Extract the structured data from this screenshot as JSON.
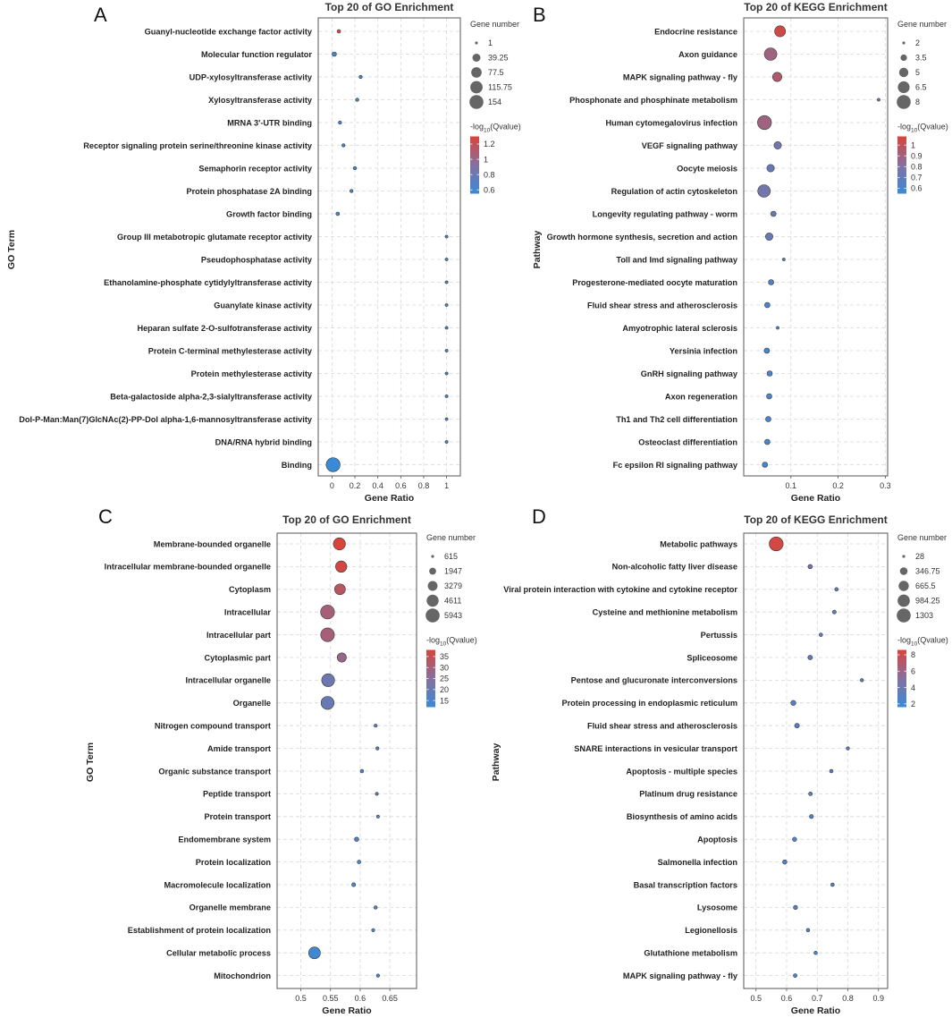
{
  "chart_data": [
    {
      "panel": "A",
      "type": "scatter",
      "title": "Top 20 of GO Enrichment",
      "xlabel": "Gene Ratio",
      "ylabel": "GO Term",
      "xlim": [
        -0.12,
        1.12
      ],
      "xticks": [
        0,
        0.2,
        0.4,
        0.6,
        0.8,
        1
      ],
      "xtick_labels": [
        "0",
        "0.2",
        "0.4",
        "0.6",
        "0.8",
        "1"
      ],
      "categories": [
        "Guanyl-nucleotide exchange factor activity",
        "Molecular function regulator",
        "UDP-xylosyltransferase activity",
        "Xylosyltransferase activity",
        "MRNA 3'-UTR binding",
        "Receptor signaling protein serine/threonine kinase activity",
        "Semaphorin receptor activity",
        "Protein phosphatase 2A binding",
        "Growth factor binding",
        "Group III metabotropic glutamate receptor activity",
        "Pseudophosphatase activity",
        "Ethanolamine-phosphate cytidylyltransferase activity",
        "Guanylate kinase activity",
        "Heparan sulfate 2-O-sulfotransferase activity",
        "Protein C-terminal methylesterase activity",
        "Protein methylesterase activity",
        "Beta-galactoside alpha-2,3-sialyltransferase activity",
        "Dol-P-Man:Man(7)GlcNAc(2)-PP-Dol alpha-1,6-mannosyltransferase activity",
        "DNA/RNA hybrid binding",
        "Binding"
      ],
      "x": [
        0.06,
        0.02,
        0.25,
        0.22,
        0.07,
        0.1,
        0.2,
        0.17,
        0.05,
        1,
        1,
        1,
        1,
        1,
        1,
        1,
        1,
        1,
        1,
        0.01
      ],
      "gene_number": [
        3,
        7,
        2,
        2,
        2,
        2,
        2,
        2,
        3,
        1,
        1,
        1,
        1,
        1,
        1,
        1,
        1,
        1,
        1,
        154
      ],
      "qvalue_log": [
        1.25,
        0.6,
        0.6,
        0.6,
        0.6,
        0.6,
        0.6,
        0.62,
        0.6,
        0.6,
        0.6,
        0.6,
        0.6,
        0.6,
        0.6,
        0.6,
        0.6,
        0.6,
        0.6,
        0.55
      ],
      "size_legend": {
        "title": "Gene number",
        "values": [
          1,
          39.25,
          77.5,
          115.75,
          154
        ],
        "labels": [
          "1",
          "39.25",
          "77.5",
          "115.75",
          "154"
        ]
      },
      "color_legend": {
        "title_prefix": "-log",
        "title_sub": "10",
        "title_suffix": "(Qvalue)",
        "range": [
          0.55,
          1.3
        ],
        "ticks": [
          1.2,
          1,
          0.8,
          0.6
        ],
        "tick_labels": [
          "1.2",
          "1",
          "0.8",
          "0.6"
        ]
      }
    },
    {
      "panel": "B",
      "type": "scatter",
      "title": "Top 20 of KEGG Enrichment",
      "xlabel": "Gene Ratio",
      "ylabel": "Pathway",
      "xlim": [
        0,
        0.305
      ],
      "xticks": [
        0.1,
        0.2,
        0.3
      ],
      "xtick_labels": [
        "0.1",
        "0.2",
        "0.3"
      ],
      "categories": [
        "Endocrine resistance",
        "Axon guidance",
        "MAPK signaling pathway - fly",
        "Phosphonate and phosphinate metabolism",
        "Human cytomegalovirus infection",
        "VEGF signaling pathway",
        "Oocyte meiosis",
        "Regulation of actin cytoskeleton",
        "Longevity regulating pathway - worm",
        "Growth hormone synthesis, secretion and action",
        "Toll and Imd signaling pathway",
        "Progesterone-mediated oocyte maturation",
        "Fluid shear stress and atherosclerosis",
        "Amyotrophic lateral sclerosis",
        "Yersinia infection",
        "GnRH signaling pathway",
        "Axon regeneration",
        "Th1 and Th2 cell differentiation",
        "Osteoclast differentiation",
        "Fc epsilon RI signaling pathway"
      ],
      "x": [
        0.077,
        0.057,
        0.071,
        0.286,
        0.044,
        0.072,
        0.057,
        0.043,
        0.063,
        0.054,
        0.085,
        0.058,
        0.05,
        0.072,
        0.049,
        0.055,
        0.054,
        0.052,
        0.05,
        0.045
      ],
      "gene_number": [
        6,
        7,
        5,
        2,
        8,
        4,
        4,
        7,
        3,
        4,
        2,
        3,
        3,
        2,
        3,
        3,
        3,
        3,
        3,
        3
      ],
      "qvalue_log": [
        1.05,
        0.9,
        0.95,
        0.8,
        0.9,
        0.75,
        0.7,
        0.75,
        0.7,
        0.72,
        0.72,
        0.62,
        0.6,
        0.62,
        0.6,
        0.6,
        0.6,
        0.6,
        0.6,
        0.58
      ],
      "size_legend": {
        "title": "Gene number",
        "values": [
          2,
          3.5,
          5,
          6.5,
          8
        ],
        "labels": [
          "2",
          "3.5",
          "5",
          "6.5",
          "8"
        ]
      },
      "color_legend": {
        "title_prefix": "-log",
        "title_sub": "10",
        "title_suffix": "(Qvalue)",
        "range": [
          0.55,
          1.08
        ],
        "ticks": [
          1,
          0.9,
          0.8,
          0.7,
          0.6
        ],
        "tick_labels": [
          "1",
          "0.9",
          "0.8",
          "0.7",
          "0.6"
        ]
      }
    },
    {
      "panel": "C",
      "type": "scatter",
      "title": "Top 20 of GO Enrichment",
      "xlabel": "Gene Ratio",
      "ylabel": "GO Term",
      "xlim": [
        0.46,
        0.695
      ],
      "xticks": [
        0.5,
        0.55,
        0.6,
        0.65
      ],
      "xtick_labels": [
        "0.5",
        "0.55",
        "0.6",
        "0.65"
      ],
      "categories": [
        "Membrane-bounded organelle",
        "Intracellular membrane-bounded organelle",
        "Cytoplasm",
        "Intracellular",
        "Intracellular part",
        "Cytoplasmic part",
        "Intracellular organelle",
        "Organelle",
        "Nitrogen compound transport",
        "Amide transport",
        "Organic substance transport",
        "Peptide transport",
        "Protein transport",
        "Endomembrane system",
        "Protein localization",
        "Macromolecule localization",
        "Organelle membrane",
        "Establishment of protein localization",
        "Cellular metabolic process",
        "Mitochondrion"
      ],
      "x": [
        0.565,
        0.568,
        0.566,
        0.545,
        0.545,
        0.569,
        0.546,
        0.545,
        0.626,
        0.629,
        0.603,
        0.628,
        0.63,
        0.594,
        0.598,
        0.589,
        0.626,
        0.622,
        0.523,
        0.63
      ],
      "gene_number": [
        4700,
        4200,
        3900,
        5943,
        5800,
        3000,
        5200,
        5300,
        700,
        700,
        750,
        650,
        650,
        1000,
        800,
        900,
        750,
        700,
        4500,
        700
      ],
      "qvalue_log": [
        38,
        37,
        33,
        30,
        30,
        28,
        21,
        20,
        17,
        18,
        15,
        16,
        16,
        16,
        15,
        15,
        15,
        15,
        13,
        14
      ],
      "size_legend": {
        "title": "Gene number",
        "values": [
          615,
          1947,
          3279,
          4611,
          5943
        ],
        "labels": [
          "615",
          "1947",
          "3279",
          "4611",
          "5943"
        ]
      },
      "color_legend": {
        "title_prefix": "-log",
        "title_sub": "10",
        "title_suffix": "(Qvalue)",
        "range": [
          12,
          38
        ],
        "ticks": [
          35,
          30,
          25,
          20,
          15
        ],
        "tick_labels": [
          "35",
          "30",
          "25",
          "20",
          "15"
        ]
      }
    },
    {
      "panel": "D",
      "type": "scatter",
      "title": "Top 20 of KEGG Enrichment",
      "xlabel": "Gene Ratio",
      "ylabel": "Pathway",
      "xlim": [
        0.46,
        0.93
      ],
      "xticks": [
        0.5,
        0.6,
        0.7,
        0.8,
        0.9
      ],
      "xtick_labels": [
        "0.5",
        "0.6",
        "0.7",
        "0.8",
        "0.9"
      ],
      "categories": [
        "Metabolic pathways",
        "Non-alcoholic fatty liver disease",
        "Viral protein interaction with cytokine and cytokine receptor",
        "Cysteine and methionine metabolism",
        "Pertussis",
        "Spliceosome",
        "Pentose and glucuronate interconversions",
        "Protein processing in endoplasmic reticulum",
        "Fluid shear stress and atherosclerosis",
        "SNARE interactions in vesicular transport",
        "Apoptosis - multiple species",
        "Platinum drug resistance",
        "Biosynthesis of amino acids",
        "Apoptosis",
        "Salmonella infection",
        "Basal transcription factors",
        "Lysosome",
        "Legionellosis",
        "Glutathione metabolism",
        "MAPK signaling pathway - fly"
      ],
      "x": [
        0.566,
        0.677,
        0.763,
        0.756,
        0.712,
        0.677,
        0.846,
        0.622,
        0.634,
        0.8,
        0.746,
        0.678,
        0.681,
        0.626,
        0.594,
        0.75,
        0.629,
        0.67,
        0.695,
        0.628
      ],
      "gene_number": [
        1303,
        90,
        50,
        60,
        50,
        100,
        40,
        130,
        110,
        40,
        50,
        60,
        70,
        80,
        90,
        50,
        80,
        50,
        45,
        60
      ],
      "qvalue_log": [
        8.3,
        4.5,
        3.5,
        3.5,
        3.3,
        3.3,
        3.2,
        3.0,
        3.0,
        3.0,
        3.0,
        2.8,
        2.8,
        2.6,
        2.6,
        2.5,
        2.5,
        2.4,
        2.4,
        2.4
      ],
      "size_legend": {
        "title": "Gene number",
        "values": [
          28,
          346.75,
          665.5,
          984.25,
          1303
        ],
        "labels": [
          "28",
          "346.75",
          "665.5",
          "984.25",
          "1303"
        ]
      },
      "color_legend": {
        "title_prefix": "-log",
        "title_sub": "10",
        "title_suffix": "(Qvalue)",
        "range": [
          1.6,
          8.6
        ],
        "ticks": [
          8,
          6,
          4,
          2
        ],
        "tick_labels": [
          "8",
          "6",
          "4",
          "2"
        ]
      }
    }
  ],
  "colors": {
    "low": "#3a8ad6",
    "mid": "#8470a0",
    "high": "#d9443a",
    "legend_dot": "#666666"
  }
}
